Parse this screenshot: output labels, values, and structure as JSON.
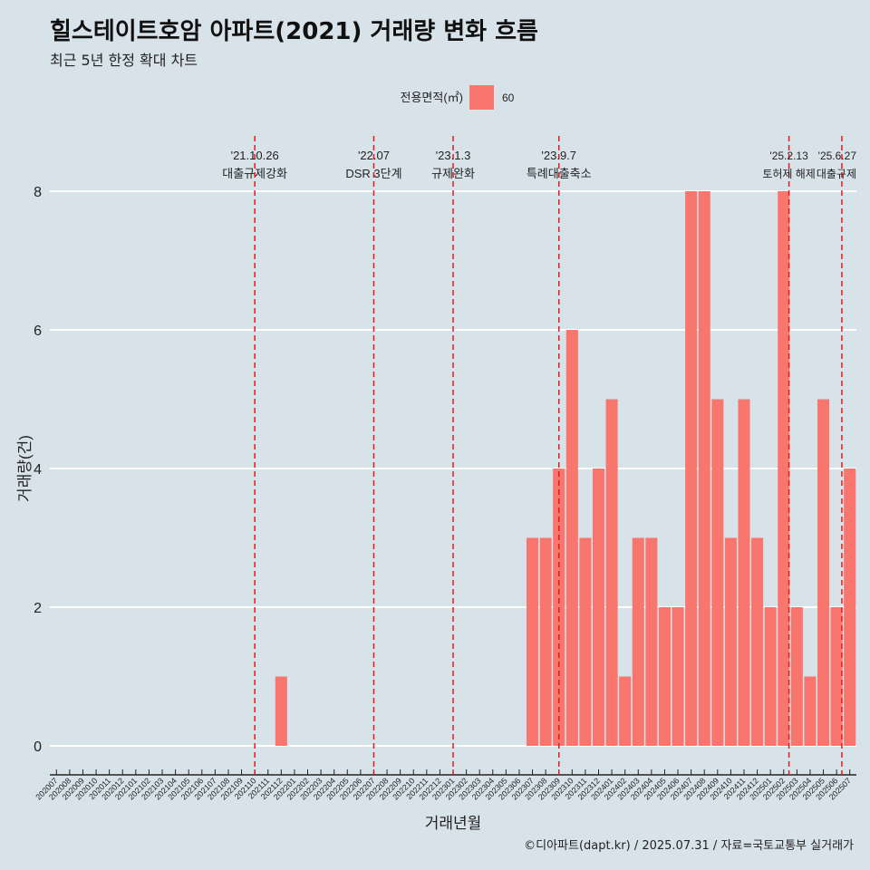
{
  "header": {
    "title": "힐스테이트호암 아파트(2021) 거래량 변화 흐름",
    "subtitle": "최근 5년 한정 확대 차트"
  },
  "caption": "©디아파트(dapt.kr) / 2025.07.31 / 자료=국토교통부 실거래가",
  "colors": {
    "background": "#d8e3e9",
    "bar": "#f8766d",
    "event_line": "#e31a1c",
    "grid": "#ffffff"
  },
  "chart_data": {
    "type": "bar",
    "xlabel": "거래년월",
    "ylabel": "거래량(건)",
    "ylim": [
      0,
      8
    ],
    "yticks": [
      0,
      2,
      4,
      6,
      8
    ],
    "grid": true,
    "legend": {
      "title": "전용면적(㎡)",
      "position": "top",
      "entries": [
        {
          "label": "60",
          "color": "#f8766d"
        }
      ]
    },
    "categories": [
      "202007",
      "202008",
      "202009",
      "202010",
      "202011",
      "202012",
      "202101",
      "202102",
      "202103",
      "202104",
      "202105",
      "202106",
      "202107",
      "202108",
      "202109",
      "202110",
      "202111",
      "202112",
      "202201",
      "202202",
      "202203",
      "202204",
      "202205",
      "202206",
      "202207",
      "202208",
      "202209",
      "202210",
      "202211",
      "202212",
      "202301",
      "202302",
      "202303",
      "202304",
      "202305",
      "202306",
      "202307",
      "202308",
      "202309",
      "202310",
      "202311",
      "202312",
      "202401",
      "202402",
      "202403",
      "202404",
      "202405",
      "202406",
      "202407",
      "202408",
      "202409",
      "202410",
      "202411",
      "202412",
      "202501",
      "202502",
      "202503",
      "202504",
      "202505",
      "202506",
      "202507"
    ],
    "series": [
      {
        "name": "60",
        "values": [
          0,
          0,
          0,
          0,
          0,
          0,
          0,
          0,
          0,
          0,
          0,
          0,
          0,
          0,
          0,
          0,
          0,
          1,
          0,
          0,
          0,
          0,
          0,
          0,
          0,
          0,
          0,
          0,
          0,
          0,
          0,
          0,
          0,
          0,
          0,
          0,
          3,
          3,
          4,
          6,
          3,
          4,
          5,
          1,
          3,
          3,
          2,
          2,
          8,
          8,
          5,
          3,
          5,
          3,
          2,
          8,
          2,
          1,
          5,
          2,
          4
        ]
      }
    ],
    "events": [
      {
        "date": "'21.10.26",
        "label": "대출규제강화",
        "pos": 15.0
      },
      {
        "date": "'22.07",
        "label": "DSR 3단계",
        "pos": 24.0
      },
      {
        "date": "'23.1.3",
        "label": "규제완화",
        "pos": 30.0
      },
      {
        "date": "'23.9.7",
        "label": "특례대출축소",
        "pos": 38.0
      },
      {
        "date": "'25.2.13",
        "label": "토허제 해제",
        "pos": 55.4
      },
      {
        "date": "'25.6.27",
        "label": "대출규제",
        "pos": 59.4
      }
    ]
  }
}
